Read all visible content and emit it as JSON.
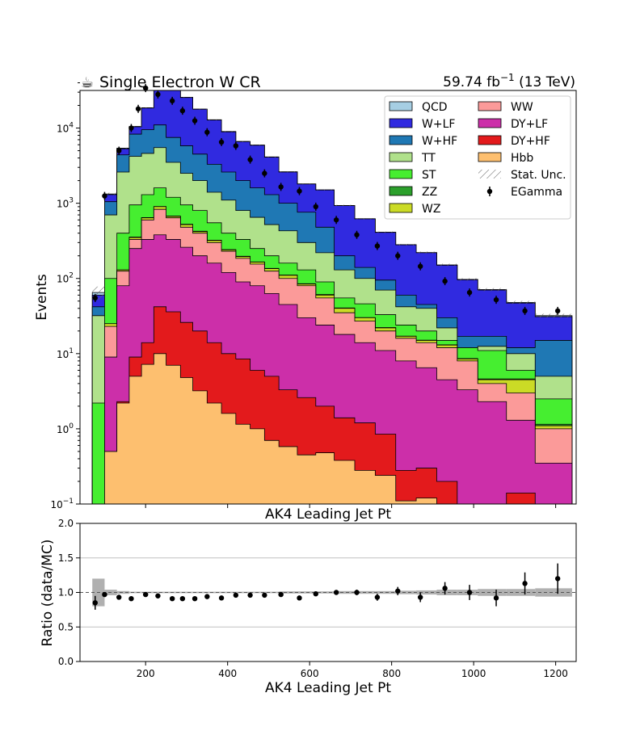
{
  "header": {
    "title_icon": "coffee-cup-icon",
    "title_icon_glyph": "☕",
    "title": "Single Electron W CR",
    "lumi_value": "59.74 fb",
    "lumi_exp": "−1",
    "lumi_energy": " (13 TeV)"
  },
  "chart_data": [
    {
      "type": "area",
      "subtype": "stacked-step-histogram",
      "log_y": true,
      "xlabel": "AK4 Leading Jet Pt",
      "ylabel": "Events",
      "xlim": [
        40,
        1250
      ],
      "ylim": [
        0.1,
        40000
      ],
      "y_ticks": [
        {
          "value": 0.1,
          "base": "10",
          "exp": "−1"
        },
        {
          "value": 1,
          "base": "10",
          "exp": "0"
        },
        {
          "value": 10,
          "base": "10",
          "exp": "1"
        },
        {
          "value": 100,
          "base": "10",
          "exp": "2"
        },
        {
          "value": 1000,
          "base": "10",
          "exp": "3"
        },
        {
          "value": 10000,
          "base": "10",
          "exp": "4"
        }
      ],
      "bin_edges": [
        70,
        100,
        130,
        160,
        190,
        220,
        250,
        285,
        315,
        350,
        385,
        420,
        455,
        490,
        525,
        570,
        615,
        660,
        710,
        760,
        810,
        860,
        910,
        960,
        1010,
        1080,
        1150,
        1240
      ],
      "stack": [
        {
          "name": "Hbb",
          "color": "#fdbf6f",
          "cum": [
            0.005,
            0.5,
            2.2,
            5,
            7.2,
            10,
            7,
            4.8,
            3.2,
            2.2,
            1.6,
            1.15,
            1.0,
            0.7,
            0.58,
            0.45,
            0.48,
            0.38,
            0.28,
            0.24,
            0.11,
            0.12,
            0.07,
            0.05,
            0.04,
            0.03,
            0.02
          ]
        },
        {
          "name": "DY+HF",
          "color": "#e31a1c",
          "cum": [
            0.006,
            0.5,
            2.3,
            9,
            14,
            42,
            36,
            26,
            20,
            14,
            10,
            8.5,
            6,
            5,
            3.3,
            2.6,
            2.0,
            1.4,
            1.2,
            0.85,
            0.28,
            0.3,
            0.2,
            0.09,
            0.09,
            0.14,
            0.05
          ]
        },
        {
          "name": "DY+LF",
          "color": "#cc2fa9",
          "cum": [
            0.006,
            9,
            80,
            250,
            330,
            380,
            330,
            260,
            200,
            160,
            120,
            90,
            80,
            63,
            45,
            30,
            24,
            18,
            14,
            11,
            8,
            6.5,
            4.5,
            3.3,
            2.3,
            1.3,
            0.35
          ]
        },
        {
          "name": "WW",
          "color": "#fb9a99",
          "cum": [
            0.006,
            23,
            125,
            330,
            600,
            830,
            640,
            480,
            400,
            300,
            230,
            185,
            155,
            125,
            100,
            80,
            55,
            35,
            27,
            20,
            16,
            14,
            12,
            8,
            4,
            3,
            1
          ]
        },
        {
          "name": "WZ",
          "color": "#cbdb26",
          "cum": [
            0.007,
            25,
            130,
            350,
            640,
            900,
            670,
            520,
            420,
            320,
            240,
            195,
            165,
            135,
            110,
            84,
            60,
            40,
            30,
            22,
            17,
            15,
            13,
            8.5,
            4.5,
            4.5,
            1.1
          ]
        },
        {
          "name": "ZZ",
          "color": "#2ca02c",
          "cum": [
            0.007,
            25,
            130,
            355,
            645,
            905,
            675,
            525,
            425,
            322,
            242,
            197,
            166,
            136,
            111,
            85,
            61,
            40.5,
            30.2,
            22.2,
            17.1,
            15.1,
            13.1,
            8.6,
            4.6,
            4.6,
            1.15
          ]
        },
        {
          "name": "ST",
          "color": "#46ee30",
          "cum": [
            2.2,
            100,
            400,
            950,
            1300,
            1600,
            1200,
            950,
            800,
            550,
            400,
            330,
            250,
            200,
            160,
            130,
            90,
            55,
            46,
            33,
            24,
            20,
            15,
            12,
            11,
            6,
            2.5
          ]
        },
        {
          "name": "TT",
          "color": "#b0e18b",
          "cum": [
            32,
            700,
            2600,
            4200,
            4600,
            5500,
            3500,
            2500,
            2000,
            1400,
            1100,
            800,
            650,
            520,
            430,
            300,
            220,
            130,
            100,
            70,
            42,
            40,
            22,
            11,
            12.5,
            10,
            5
          ]
        },
        {
          "name": "W+HF",
          "color": "#1f78b4",
          "cum": [
            42,
            1050,
            4400,
            8300,
            9500,
            11000,
            7500,
            5800,
            4500,
            3300,
            2600,
            2000,
            1600,
            1300,
            1000,
            760,
            480,
            200,
            140,
            95,
            60,
            45,
            30,
            17,
            17,
            12,
            15
          ]
        },
        {
          "name": "W+LF",
          "color": "#302ae0",
          "cum": [
            60,
            1300,
            5300,
            10400,
            18500,
            35000,
            33000,
            25500,
            17800,
            12800,
            8900,
            6600,
            5900,
            4100,
            2600,
            1800,
            1500,
            930,
            620,
            410,
            280,
            220,
            150,
            96,
            70,
            47,
            31
          ]
        },
        {
          "name": "QCD",
          "color": "#a6cee3",
          "cum": [
            65,
            1330,
            5400,
            10500,
            18600,
            35100,
            33100,
            25600,
            17900,
            12900,
            9000,
            6650,
            5950,
            4130,
            2620,
            1810,
            1510,
            935,
            622,
            412,
            281,
            221,
            151,
            97,
            71,
            48,
            32
          ]
        }
      ],
      "data_series": {
        "name": "EGamma",
        "x": [
          77,
          100,
          135,
          165,
          182,
          200,
          230,
          265,
          290,
          320,
          350,
          385,
          420,
          455,
          490,
          530,
          575,
          615,
          665,
          715,
          765,
          815,
          870,
          930,
          990,
          1055,
          1125,
          1205
        ],
        "y": [
          55,
          1250,
          5000,
          10000,
          18000,
          34000,
          28000,
          23000,
          17000,
          12500,
          8800,
          6500,
          5800,
          3800,
          2500,
          1650,
          1450,
          900,
          600,
          380,
          270,
          200,
          145,
          92,
          65,
          52,
          37,
          37
        ]
      },
      "legend": {
        "placement": "top-right",
        "left_column": [
          "QCD",
          "W+LF",
          "W+HF",
          "TT",
          "ST",
          "ZZ",
          "WZ"
        ],
        "right_column": [
          "WW",
          "DY+LF",
          "DY+HF",
          "Hbb",
          "Stat. Unc.",
          "EGamma"
        ],
        "stat_unc_label": "Stat. Unc."
      }
    },
    {
      "type": "scatter",
      "xlabel": "AK4 Leading Jet Pt",
      "ylabel": "Ratio (data/MC)",
      "xlim": [
        40,
        1250
      ],
      "ylim": [
        0.0,
        2.0
      ],
      "x_ticks": [
        "200",
        "400",
        "600",
        "800",
        "1000",
        "1200"
      ],
      "y_ticks": [
        "0.0",
        "0.5",
        "1.0",
        "1.5",
        "2.0"
      ],
      "grid_lines_y": [
        0.5,
        1.0,
        1.5
      ],
      "points": {
        "x": [
          77,
          100,
          135,
          165,
          200,
          230,
          265,
          290,
          320,
          350,
          385,
          420,
          455,
          490,
          530,
          575,
          615,
          665,
          715,
          765,
          815,
          870,
          930,
          990,
          1055,
          1125,
          1205
        ],
        "y": [
          0.85,
          0.97,
          0.93,
          0.91,
          0.97,
          0.95,
          0.91,
          0.91,
          0.91,
          0.94,
          0.92,
          0.96,
          0.96,
          0.96,
          0.97,
          0.92,
          0.98,
          1.0,
          1.0,
          0.93,
          1.02,
          0.93,
          1.06,
          1.0,
          0.92,
          1.13,
          1.2
        ],
        "err": [
          0.1,
          0.02,
          0.02,
          0.01,
          0.01,
          0.01,
          0.01,
          0.01,
          0.01,
          0.01,
          0.01,
          0.01,
          0.01,
          0.01,
          0.02,
          0.02,
          0.02,
          0.03,
          0.04,
          0.05,
          0.06,
          0.07,
          0.09,
          0.11,
          0.12,
          0.16,
          0.22
        ]
      },
      "unc_band": {
        "edges": [
          70,
          100,
          130,
          160,
          190,
          220,
          250,
          285,
          315,
          350,
          385,
          420,
          455,
          490,
          525,
          570,
          615,
          660,
          710,
          760,
          810,
          860,
          910,
          960,
          1010,
          1080,
          1150,
          1240
        ],
        "halfwidth": [
          0.2,
          0.04,
          0.02,
          0.01,
          0.01,
          0.01,
          0.01,
          0.01,
          0.01,
          0.01,
          0.01,
          0.01,
          0.01,
          0.01,
          0.015,
          0.015,
          0.015,
          0.02,
          0.02,
          0.02,
          0.025,
          0.03,
          0.04,
          0.04,
          0.05,
          0.05,
          0.06
        ]
      }
    }
  ]
}
